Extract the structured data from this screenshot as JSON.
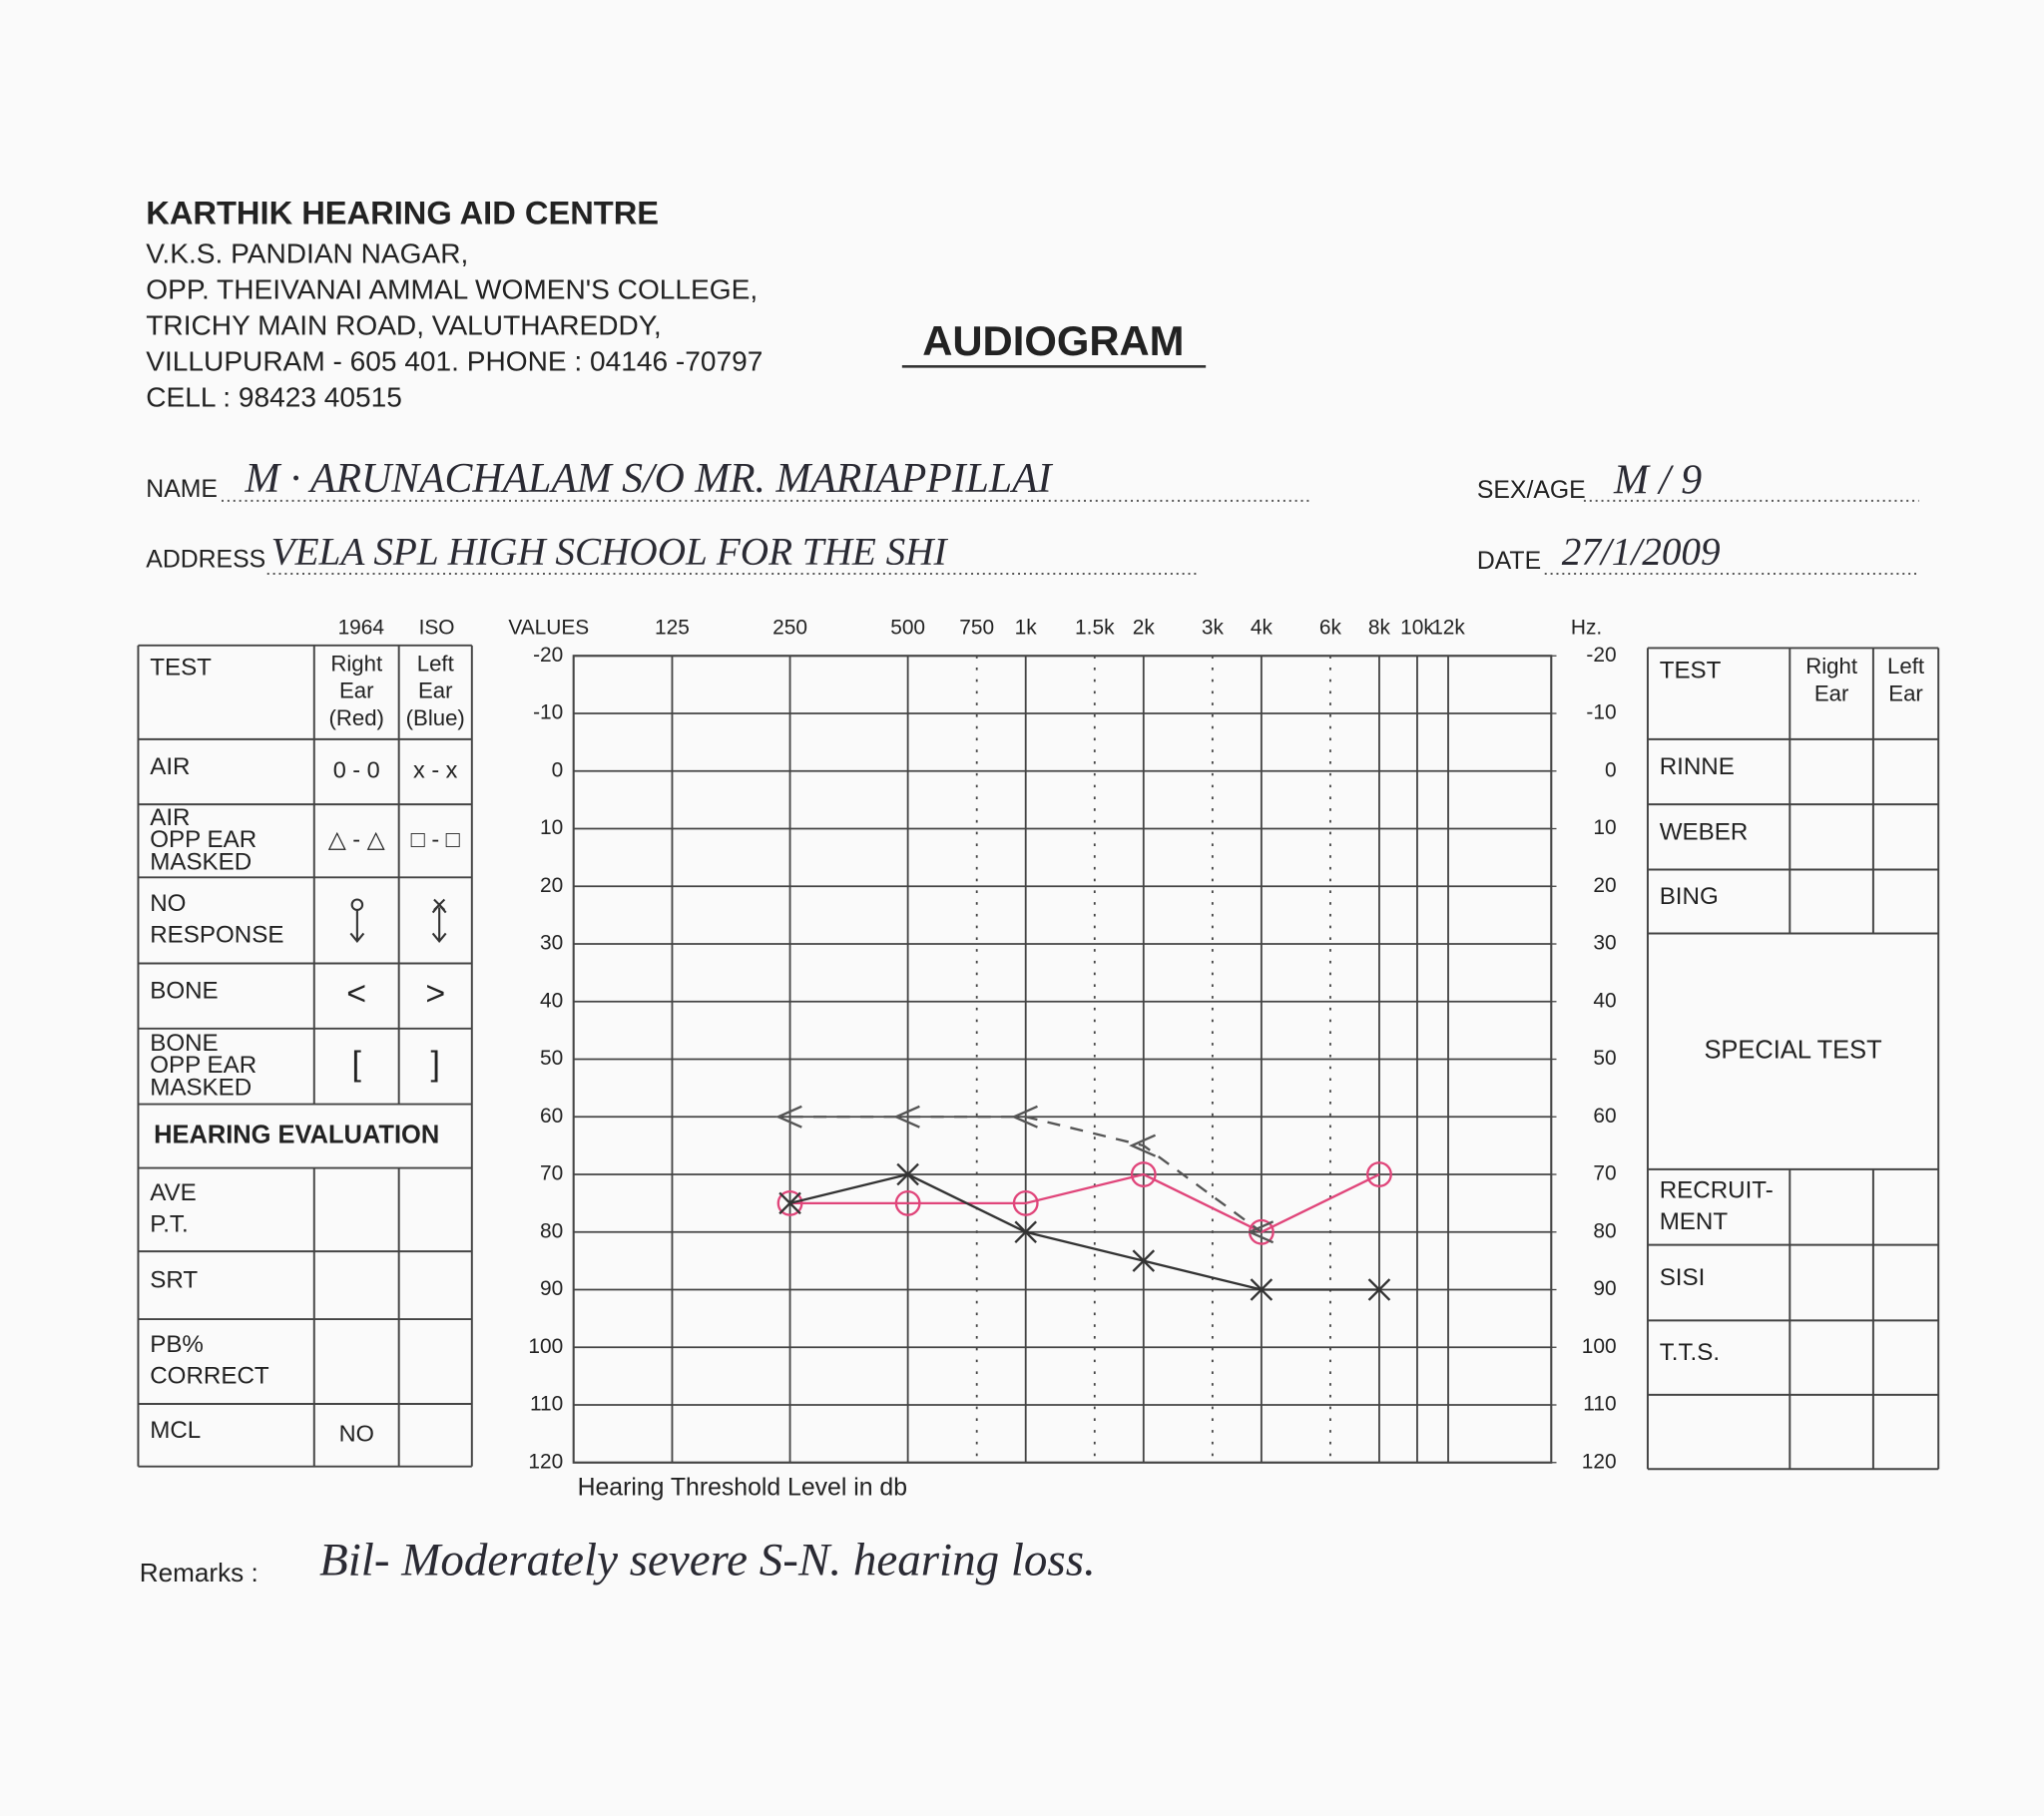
{
  "header": {
    "clinic": "KARTHIK HEARING AID CENTRE",
    "address_lines": [
      "V.K.S. PANDIAN NAGAR,",
      "OPP. THEIVANAI AMMAL WOMEN'S COLLEGE,",
      "TRICHY MAIN ROAD, VALUTHAREDDY,",
      "VILLUPURAM - 605 401. PHONE : 04146 -70797",
      "CELL : 98423 40515"
    ],
    "title": "AUDIOGRAM"
  },
  "patient": {
    "name_label": "NAME",
    "name": "M · ARUNACHALAM   S/O MR. MARIAPPILLAI",
    "sex_age_label": "SEX/AGE",
    "sex_age": "M / 9",
    "address_label": "ADDRESS",
    "address": "VELA SPL HIGH SCHOOL FOR THE SHI",
    "date_label": "DATE",
    "date": "27/1/2009"
  },
  "left_table": {
    "column_notes": [
      "1964",
      "ISO"
    ],
    "header": {
      "test": "TEST",
      "right": [
        "Right",
        "Ear",
        "(Red)"
      ],
      "left": [
        "Left",
        "Ear",
        "(Blue)"
      ]
    },
    "rows": [
      {
        "test": "AIR",
        "right": "0 - 0",
        "left": "x - x"
      },
      {
        "test": [
          "AIR",
          "OPP EAR",
          "MASKED"
        ],
        "right": "△ - △",
        "left": "□ - □"
      },
      {
        "test": [
          "NO",
          "RESPONSE"
        ]
      },
      {
        "test": "BONE",
        "right": "<",
        "left": ">"
      },
      {
        "test": [
          "BONE",
          "OPP EAR",
          "MASKED"
        ],
        "right": "[",
        "left": "]"
      },
      {
        "section": "HEARING EVALUATION"
      },
      {
        "test": [
          "AVE",
          "P.T."
        ]
      },
      {
        "test": "SRT"
      },
      {
        "test": [
          "PB%",
          "CORRECT"
        ]
      },
      {
        "test": "MCL",
        "right": "NO"
      }
    ]
  },
  "right_table": {
    "header": {
      "test": "TEST",
      "right": [
        "Right",
        "Ear"
      ],
      "left": [
        "Left",
        "Ear"
      ]
    },
    "rows": [
      {
        "test": "RINNE"
      },
      {
        "test": "WEBER"
      },
      {
        "test": "BING"
      },
      {
        "section": "SPECIAL TEST"
      },
      {
        "test": [
          "RECRUIT-",
          "MENT"
        ]
      },
      {
        "test": "SISI"
      },
      {
        "test": "T.T.S."
      }
    ]
  },
  "chart_data": {
    "type": "line",
    "x_values_label": "VALUES",
    "x_unit": "Hz.",
    "xlabel": "Hearing Threshold Level in db",
    "xscale": "log",
    "xlim": [
      70,
      22000
    ],
    "xticks": [
      125,
      250,
      500,
      {
        "value": 1000,
        "label": "1k"
      },
      {
        "value": 2000,
        "label": "2k"
      },
      {
        "value": 4000,
        "label": "4k"
      },
      {
        "value": 8000,
        "label": "8k"
      },
      {
        "value": 10000,
        "label": "10k"
      },
      {
        "value": 12000,
        "label": "12k"
      }
    ],
    "minor_xticks": [
      750,
      {
        "value": 1500,
        "label": "1.5k"
      },
      {
        "value": 3000,
        "label": "3k"
      },
      {
        "value": 6000,
        "label": "6k"
      }
    ],
    "ylim": [
      -20,
      120
    ],
    "y_inverted": true,
    "yticks": [
      -20,
      -10,
      0,
      10,
      20,
      30,
      40,
      50,
      60,
      70,
      80,
      90,
      100,
      110,
      120
    ],
    "y2lim": [
      -20,
      120
    ],
    "y2ticks": [
      -20,
      -10,
      0,
      10,
      20,
      30,
      40,
      50,
      60,
      70,
      80,
      90,
      100,
      110,
      120
    ],
    "grid": true,
    "series": [
      {
        "symbol": "o",
        "color": "#e0457a",
        "x": [
          250,
          500,
          1000,
          2000,
          4000,
          8000
        ],
        "values": [
          75,
          75,
          75,
          70,
          80,
          70
        ]
      },
      {
        "symbol": "x",
        "color": "#333333",
        "x": [
          250,
          500,
          1000,
          2000,
          4000,
          8000
        ],
        "values": [
          75,
          70,
          80,
          85,
          90,
          90
        ]
      },
      {
        "symbol": "<",
        "color": "#555555",
        "dashed": true,
        "x": [
          250,
          500,
          1000,
          2000,
          4000
        ],
        "values": [
          60,
          60,
          60,
          65,
          80
        ]
      }
    ]
  },
  "remarks": {
    "label": "Remarks :",
    "text": "Bil- Moderately severe S-N. hearing loss."
  }
}
